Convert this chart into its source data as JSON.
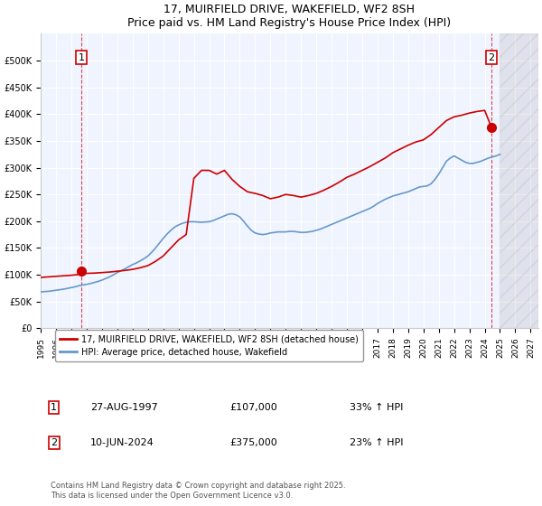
{
  "title_line1": "17, MUIRFIELD DRIVE, WAKEFIELD, WF2 8SH",
  "title_line2": "Price paid vs. HM Land Registry's House Price Index (HPI)",
  "xlabel": "",
  "ylabel": "",
  "bg_color": "#ffffff",
  "plot_bg_color": "#f0f4ff",
  "grid_color": "#ffffff",
  "red_color": "#cc0000",
  "blue_color": "#6699cc",
  "dashed_color": "#cc0000",
  "purchase1": {
    "date": "27-AUG-1997",
    "price": 107000,
    "hpi_pct": "33% ↑ HPI",
    "label": "1"
  },
  "purchase2": {
    "date": "10-JUN-2024",
    "price": 375000,
    "hpi_pct": "23% ↑ HPI",
    "label": "2"
  },
  "legend1": "17, MUIRFIELD DRIVE, WAKEFIELD, WF2 8SH (detached house)",
  "legend2": "HPI: Average price, detached house, Wakefield",
  "footer": "Contains HM Land Registry data © Crown copyright and database right 2025.\nThis data is licensed under the Open Government Licence v3.0.",
  "ylim": [
    0,
    550000
  ],
  "yticks": [
    0,
    50000,
    100000,
    150000,
    200000,
    250000,
    300000,
    350000,
    400000,
    450000,
    500000
  ],
  "xmin_year": 1995.0,
  "xmax_year": 2027.5,
  "xticks": [
    1995,
    1996,
    1997,
    1998,
    1999,
    2000,
    2001,
    2002,
    2003,
    2004,
    2005,
    2006,
    2007,
    2008,
    2009,
    2010,
    2011,
    2012,
    2013,
    2014,
    2015,
    2016,
    2017,
    2018,
    2019,
    2020,
    2021,
    2022,
    2023,
    2024,
    2025,
    2026,
    2027
  ],
  "hpi_line": {
    "years": [
      1995.0,
      1995.25,
      1995.5,
      1995.75,
      1996.0,
      1996.25,
      1996.5,
      1996.75,
      1997.0,
      1997.25,
      1997.5,
      1997.75,
      1998.0,
      1998.25,
      1998.5,
      1998.75,
      1999.0,
      1999.25,
      1999.5,
      1999.75,
      2000.0,
      2000.25,
      2000.5,
      2000.75,
      2001.0,
      2001.25,
      2001.5,
      2001.75,
      2002.0,
      2002.25,
      2002.5,
      2002.75,
      2003.0,
      2003.25,
      2003.5,
      2003.75,
      2004.0,
      2004.25,
      2004.5,
      2004.75,
      2005.0,
      2005.25,
      2005.5,
      2005.75,
      2006.0,
      2006.25,
      2006.5,
      2006.75,
      2007.0,
      2007.25,
      2007.5,
      2007.75,
      2008.0,
      2008.25,
      2008.5,
      2008.75,
      2009.0,
      2009.25,
      2009.5,
      2009.75,
      2010.0,
      2010.25,
      2010.5,
      2010.75,
      2011.0,
      2011.25,
      2011.5,
      2011.75,
      2012.0,
      2012.25,
      2012.5,
      2012.75,
      2013.0,
      2013.25,
      2013.5,
      2013.75,
      2014.0,
      2014.25,
      2014.5,
      2014.75,
      2015.0,
      2015.25,
      2015.5,
      2015.75,
      2016.0,
      2016.25,
      2016.5,
      2016.75,
      2017.0,
      2017.25,
      2017.5,
      2017.75,
      2018.0,
      2018.25,
      2018.5,
      2018.75,
      2019.0,
      2019.25,
      2019.5,
      2019.75,
      2020.0,
      2020.25,
      2020.5,
      2020.75,
      2021.0,
      2021.25,
      2021.5,
      2021.75,
      2022.0,
      2022.25,
      2022.5,
      2022.75,
      2023.0,
      2023.25,
      2023.5,
      2023.75,
      2024.0,
      2024.25,
      2024.5,
      2024.75,
      2025.0
    ],
    "values": [
      68000,
      68500,
      69000,
      70000,
      71000,
      72000,
      73000,
      74500,
      76000,
      77500,
      79500,
      81000,
      82000,
      83500,
      85500,
      87500,
      90000,
      93000,
      96000,
      100000,
      104000,
      107500,
      111000,
      115000,
      119000,
      122000,
      126000,
      130000,
      135000,
      142000,
      150000,
      159000,
      168000,
      176000,
      183000,
      189000,
      193000,
      196000,
      198000,
      199000,
      199000,
      198500,
      198000,
      198500,
      199000,
      201000,
      204000,
      207000,
      210000,
      213000,
      214000,
      212000,
      208000,
      200000,
      191000,
      183000,
      178000,
      176000,
      175000,
      176000,
      178000,
      179000,
      180000,
      180000,
      180000,
      181000,
      181000,
      180000,
      179000,
      179000,
      180000,
      181000,
      183000,
      185000,
      188000,
      191000,
      194000,
      197000,
      200000,
      203000,
      206000,
      209000,
      212000,
      215000,
      218000,
      221000,
      224000,
      228000,
      233000,
      237000,
      241000,
      244000,
      247000,
      249000,
      251000,
      253000,
      255000,
      258000,
      261000,
      264000,
      265000,
      266000,
      270000,
      278000,
      288000,
      300000,
      312000,
      318000,
      322000,
      318000,
      314000,
      310000,
      308000,
      308000,
      310000,
      312000,
      315000,
      318000,
      320000,
      322000,
      325000
    ]
  },
  "red_line": {
    "years": [
      1995.0,
      1995.5,
      1996.0,
      1996.5,
      1997.0,
      1997.5,
      1997.66,
      1997.75,
      1998.0,
      1998.5,
      1999.0,
      1999.5,
      2000.0,
      2000.5,
      2001.0,
      2001.5,
      2002.0,
      2002.5,
      2003.0,
      2003.5,
      2004.0,
      2004.5,
      2005.0,
      2005.5,
      2006.0,
      2006.5,
      2007.0,
      2007.5,
      2008.0,
      2008.5,
      2009.0,
      2009.5,
      2010.0,
      2010.5,
      2011.0,
      2011.5,
      2012.0,
      2012.5,
      2013.0,
      2013.5,
      2014.0,
      2014.5,
      2015.0,
      2015.5,
      2016.0,
      2016.5,
      2017.0,
      2017.5,
      2018.0,
      2018.5,
      2019.0,
      2019.5,
      2020.0,
      2020.5,
      2021.0,
      2021.5,
      2022.0,
      2022.5,
      2023.0,
      2023.5,
      2024.0,
      2024.45,
      2024.5
    ],
    "values": [
      95000,
      96000,
      97000,
      98000,
      99000,
      100500,
      107000,
      102000,
      102500,
      103000,
      104000,
      105000,
      106500,
      108000,
      110000,
      113000,
      117000,
      125000,
      135000,
      150000,
      165000,
      175000,
      280000,
      295000,
      295000,
      288000,
      295000,
      278000,
      265000,
      255000,
      252000,
      248000,
      242000,
      245000,
      250000,
      248000,
      245000,
      248000,
      252000,
      258000,
      265000,
      273000,
      282000,
      288000,
      295000,
      302000,
      310000,
      318000,
      328000,
      335000,
      342000,
      348000,
      352000,
      362000,
      375000,
      388000,
      395000,
      398000,
      402000,
      405000,
      407000,
      375000,
      372000
    ]
  }
}
